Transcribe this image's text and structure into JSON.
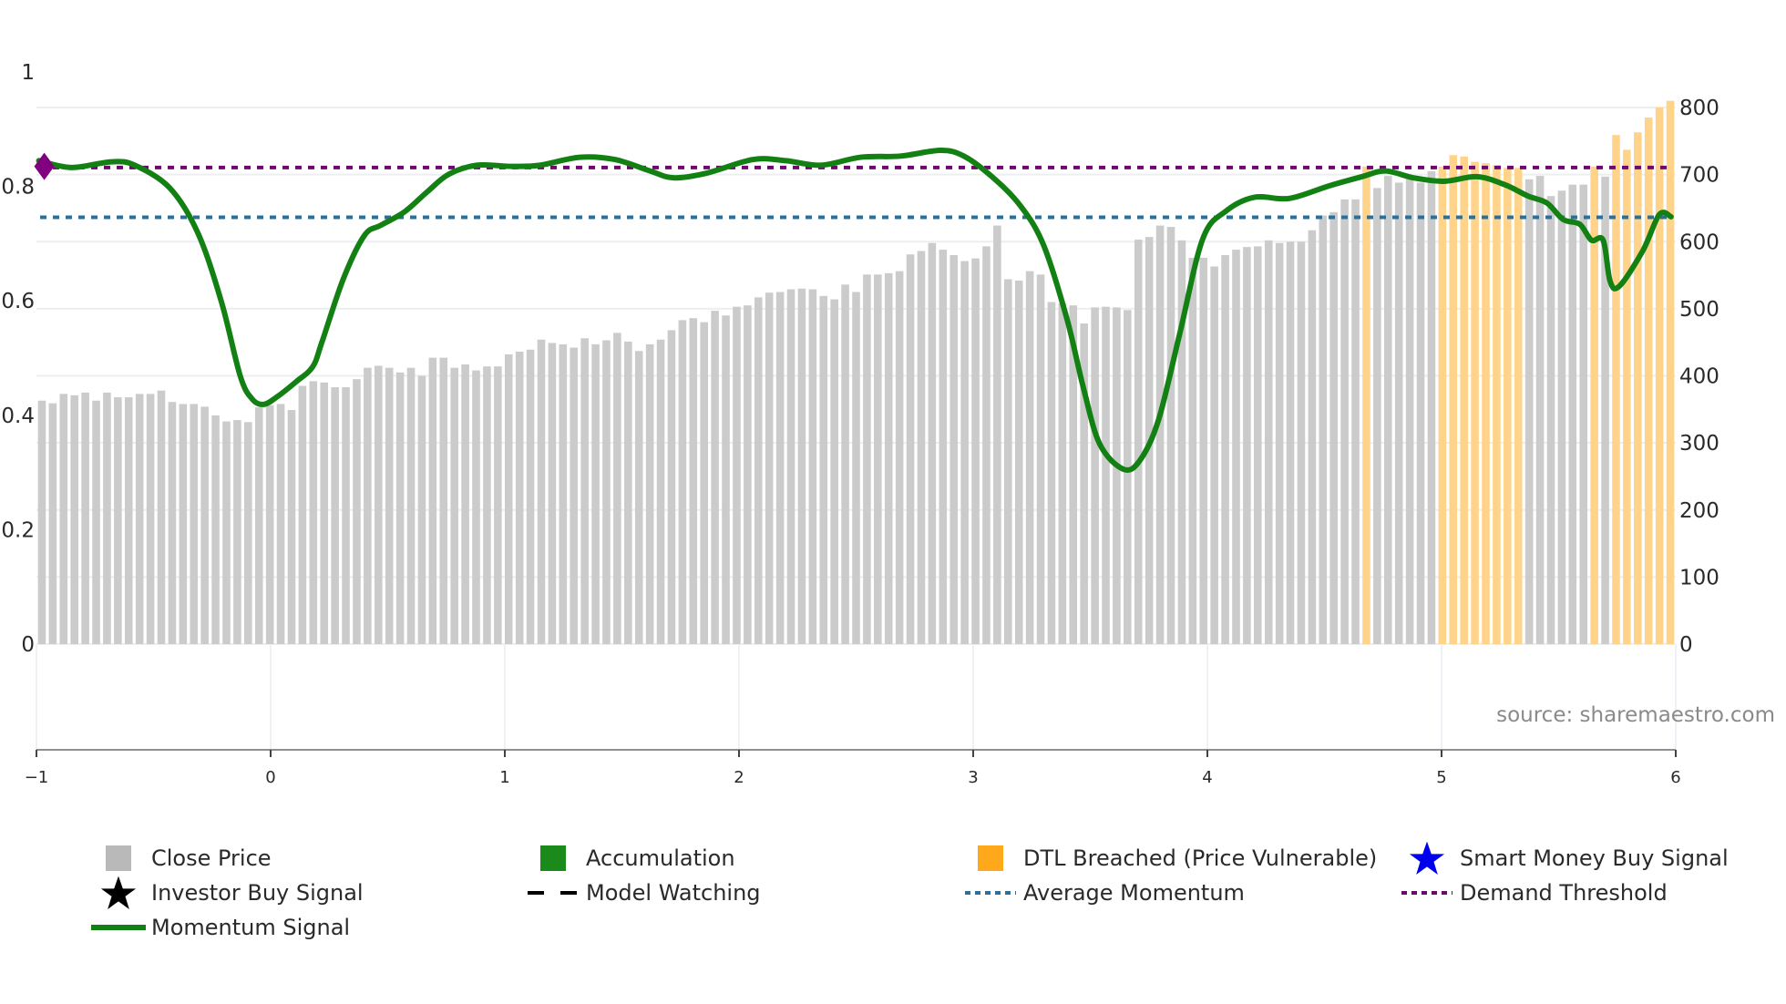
{
  "chart_data": {
    "type": "bar+line",
    "title": "",
    "source": "source: sharemaestro.com",
    "x_axis": {
      "range": [
        -1,
        6
      ],
      "ticks": [
        "−1",
        "0",
        "1",
        "2",
        "3",
        "4",
        "5",
        "6"
      ],
      "label": ""
    },
    "y_left": {
      "range": [
        0,
        1
      ],
      "ticks": [
        "0",
        "0.2",
        "0.4",
        "0.6",
        "0.8",
        "1"
      ],
      "label": ""
    },
    "y_right": {
      "range": [
        0,
        800
      ],
      "ticks": [
        "0",
        "100",
        "200",
        "300",
        "400",
        "500",
        "600",
        "700",
        "800"
      ],
      "label": ""
    },
    "grid": true,
    "legend_position": "bottom",
    "series": [
      {
        "name": "Close Price",
        "type": "bar",
        "axis": "right",
        "color": "#c8c8c8",
        "values": [
          363,
          359,
          373,
          371,
          375,
          363,
          375,
          368,
          368,
          373,
          373,
          378,
          361,
          358,
          358,
          354,
          341,
          332,
          334,
          331,
          353,
          356,
          358,
          349,
          385,
          392,
          390,
          383,
          383,
          395,
          412,
          415,
          412,
          405,
          412,
          400,
          427,
          427,
          412,
          417,
          408,
          414,
          414,
          432,
          436,
          439,
          454,
          449,
          447,
          442,
          456,
          447,
          453,
          464,
          451,
          437,
          447,
          454,
          468,
          483,
          486,
          480,
          497,
          490,
          503,
          505,
          517,
          524,
          525,
          529,
          530,
          529,
          519,
          514,
          536,
          525,
          551,
          551,
          553,
          556,
          581,
          586,
          598,
          588,
          580,
          571,
          575,
          593,
          624,
          544,
          542,
          556,
          551,
          510,
          508,
          505,
          478,
          502,
          503,
          502,
          498,
          603,
          607,
          624,
          622,
          602,
          576,
          576,
          563,
          580,
          588,
          592,
          593,
          602,
          598,
          600,
          600,
          617,
          639,
          644,
          663,
          663,
          712,
          680,
          698,
          688,
          698,
          688,
          705,
          712,
          729,
          727,
          719,
          717,
          714,
          710,
          710,
          693,
          698,
          668,
          676,
          685,
          685,
          712,
          697,
          759,
          737,
          763,
          785,
          800,
          810
        ],
        "dtl_breached_indices": [
          122,
          129,
          130,
          131,
          132,
          133,
          134,
          135,
          136,
          143,
          145,
          146,
          147,
          148,
          149,
          150,
          151
        ]
      },
      {
        "name": "Momentum Signal",
        "type": "line",
        "axis": "left",
        "color": "#138013",
        "points": [
          [
            -0.99,
            0.845
          ],
          [
            -0.85,
            0.833
          ],
          [
            -0.68,
            0.843
          ],
          [
            -0.58,
            0.837
          ],
          [
            -0.43,
            0.797
          ],
          [
            -0.31,
            0.718
          ],
          [
            -0.21,
            0.598
          ],
          [
            -0.13,
            0.469
          ],
          [
            -0.08,
            0.429
          ],
          [
            -0.03,
            0.419
          ],
          [
            0.03,
            0.433
          ],
          [
            0.11,
            0.459
          ],
          [
            0.18,
            0.485
          ],
          [
            0.22,
            0.529
          ],
          [
            0.31,
            0.638
          ],
          [
            0.4,
            0.714
          ],
          [
            0.47,
            0.732
          ],
          [
            0.57,
            0.755
          ],
          [
            0.67,
            0.791
          ],
          [
            0.76,
            0.821
          ],
          [
            0.88,
            0.837
          ],
          [
            1.03,
            0.835
          ],
          [
            1.15,
            0.837
          ],
          [
            1.32,
            0.851
          ],
          [
            1.47,
            0.847
          ],
          [
            1.62,
            0.827
          ],
          [
            1.72,
            0.815
          ],
          [
            1.86,
            0.823
          ],
          [
            2.06,
            0.847
          ],
          [
            2.2,
            0.845
          ],
          [
            2.35,
            0.837
          ],
          [
            2.52,
            0.851
          ],
          [
            2.69,
            0.853
          ],
          [
            2.86,
            0.863
          ],
          [
            2.96,
            0.853
          ],
          [
            3.08,
            0.817
          ],
          [
            3.2,
            0.767
          ],
          [
            3.3,
            0.698
          ],
          [
            3.4,
            0.569
          ],
          [
            3.47,
            0.449
          ],
          [
            3.54,
            0.35
          ],
          [
            3.64,
            0.306
          ],
          [
            3.71,
            0.32
          ],
          [
            3.79,
            0.39
          ],
          [
            3.88,
            0.539
          ],
          [
            3.98,
            0.708
          ],
          [
            4.08,
            0.757
          ],
          [
            4.2,
            0.781
          ],
          [
            4.35,
            0.779
          ],
          [
            4.52,
            0.801
          ],
          [
            4.66,
            0.817
          ],
          [
            4.76,
            0.827
          ],
          [
            4.88,
            0.815
          ],
          [
            5.01,
            0.809
          ],
          [
            5.15,
            0.817
          ],
          [
            5.27,
            0.803
          ],
          [
            5.37,
            0.783
          ],
          [
            5.45,
            0.771
          ],
          [
            5.52,
            0.742
          ],
          [
            5.59,
            0.734
          ],
          [
            5.64,
            0.706
          ],
          [
            5.69,
            0.706
          ],
          [
            5.72,
            0.634
          ],
          [
            5.76,
            0.626
          ],
          [
            5.86,
            0.688
          ],
          [
            5.93,
            0.751
          ],
          [
            5.98,
            0.747
          ]
        ]
      },
      {
        "name": "Average Momentum",
        "type": "hline",
        "axis": "left",
        "value": 0.746,
        "color": "#2e6f9a",
        "dash": "dot"
      },
      {
        "name": "Demand Threshold",
        "type": "hline",
        "axis": "left",
        "value": 0.833,
        "color": "#6b0a6b",
        "dash": "dot"
      }
    ],
    "markers": [
      {
        "name": "Demand marker",
        "shape": "diamond",
        "x": -0.99,
        "y": 0.835,
        "color": "#800080"
      }
    ]
  },
  "legend": {
    "items": [
      {
        "label": "Close Price",
        "icon": "square",
        "color": "#b9b9b9"
      },
      {
        "label": "Accumulation",
        "icon": "square",
        "color": "#1a8a1a"
      },
      {
        "label": "DTL Breached (Price Vulnerable)",
        "icon": "square",
        "color": "#ffa81c"
      },
      {
        "label": "Smart Money Buy Signal",
        "icon": "star",
        "color": "#0000ee"
      },
      {
        "label": "Investor Buy Signal",
        "icon": "star",
        "color": "#000000"
      },
      {
        "label": "Model Watching",
        "icon": "dash-line",
        "color": "#000000"
      },
      {
        "label": "Average Momentum",
        "icon": "dot-line",
        "color": "#2e6f9a"
      },
      {
        "label": "Demand Threshold",
        "icon": "dot-line",
        "color": "#6b0a6b"
      },
      {
        "label": "Momentum Signal",
        "icon": "solid-line",
        "color": "#138013"
      }
    ]
  }
}
